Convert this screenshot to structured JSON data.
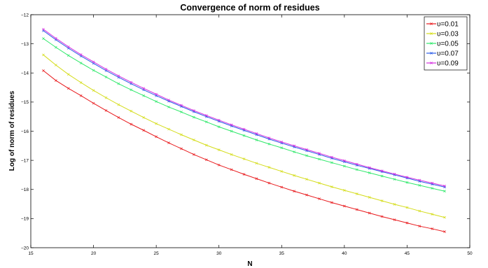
{
  "chart_data": {
    "type": "line",
    "title": "Convergence of norm of residues",
    "xlabel": "N",
    "ylabel": "Log of norm of residues",
    "xlim": [
      15,
      50
    ],
    "ylim": [
      -20,
      -12
    ],
    "xticks": [
      15,
      20,
      25,
      30,
      35,
      40,
      45,
      50
    ],
    "yticks": [
      -20,
      -19,
      -18,
      -17,
      -16,
      -15,
      -14,
      -13,
      -12
    ],
    "grid": false,
    "legend_position": "top-right",
    "x": [
      16,
      17,
      18,
      19,
      20,
      21,
      22,
      23,
      24,
      25,
      26,
      27,
      28,
      29,
      30,
      31,
      32,
      33,
      34,
      35,
      36,
      37,
      38,
      39,
      40,
      41,
      42,
      43,
      44,
      45,
      46,
      47,
      48
    ],
    "series": [
      {
        "name": "υ=0.01",
        "color": "#e8191c",
        "values": [
          -13.92,
          -14.26,
          -14.53,
          -14.78,
          -15.04,
          -15.29,
          -15.53,
          -15.76,
          -15.97,
          -16.19,
          -16.4,
          -16.6,
          -16.8,
          -16.98,
          -17.16,
          -17.32,
          -17.48,
          -17.63,
          -17.78,
          -17.92,
          -18.06,
          -18.19,
          -18.32,
          -18.45,
          -18.57,
          -18.69,
          -18.81,
          -18.93,
          -19.04,
          -19.15,
          -19.26,
          -19.35,
          -19.45
        ]
      },
      {
        "name": "υ=0.03",
        "color": "#d4dc18",
        "values": [
          -13.38,
          -13.73,
          -14.05,
          -14.33,
          -14.6,
          -14.85,
          -15.09,
          -15.31,
          -15.53,
          -15.74,
          -15.93,
          -16.12,
          -16.3,
          -16.48,
          -16.64,
          -16.8,
          -16.95,
          -17.1,
          -17.24,
          -17.38,
          -17.52,
          -17.65,
          -17.78,
          -17.91,
          -18.03,
          -18.15,
          -18.27,
          -18.39,
          -18.51,
          -18.62,
          -18.74,
          -18.85,
          -18.96
        ]
      },
      {
        "name": "υ=0.05",
        "color": "#2ee86a",
        "values": [
          -12.82,
          -13.12,
          -13.4,
          -13.66,
          -13.91,
          -14.14,
          -14.37,
          -14.58,
          -14.78,
          -14.98,
          -15.17,
          -15.34,
          -15.52,
          -15.68,
          -15.85,
          -16.0,
          -16.15,
          -16.3,
          -16.44,
          -16.57,
          -16.71,
          -16.84,
          -16.96,
          -17.08,
          -17.2,
          -17.32,
          -17.43,
          -17.54,
          -17.65,
          -17.76,
          -17.86,
          -17.96,
          -18.06
        ]
      },
      {
        "name": "υ=0.07",
        "color": "#2a5ce8",
        "values": [
          -12.55,
          -12.86,
          -13.15,
          -13.42,
          -13.67,
          -13.92,
          -14.15,
          -14.37,
          -14.58,
          -14.78,
          -14.97,
          -15.15,
          -15.33,
          -15.5,
          -15.66,
          -15.82,
          -15.97,
          -16.12,
          -16.27,
          -16.41,
          -16.54,
          -16.67,
          -16.8,
          -16.93,
          -17.05,
          -17.17,
          -17.28,
          -17.39,
          -17.5,
          -17.61,
          -17.72,
          -17.82,
          -17.92
        ]
      },
      {
        "name": "υ=0.09",
        "color": "#d42ee0",
        "values": [
          -12.5,
          -12.81,
          -13.1,
          -13.37,
          -13.62,
          -13.87,
          -14.1,
          -14.32,
          -14.53,
          -14.73,
          -14.93,
          -15.11,
          -15.29,
          -15.46,
          -15.62,
          -15.78,
          -15.93,
          -16.08,
          -16.23,
          -16.37,
          -16.5,
          -16.63,
          -16.76,
          -16.89,
          -17.01,
          -17.13,
          -17.25,
          -17.36,
          -17.47,
          -17.58,
          -17.68,
          -17.78,
          -17.88
        ]
      }
    ]
  }
}
